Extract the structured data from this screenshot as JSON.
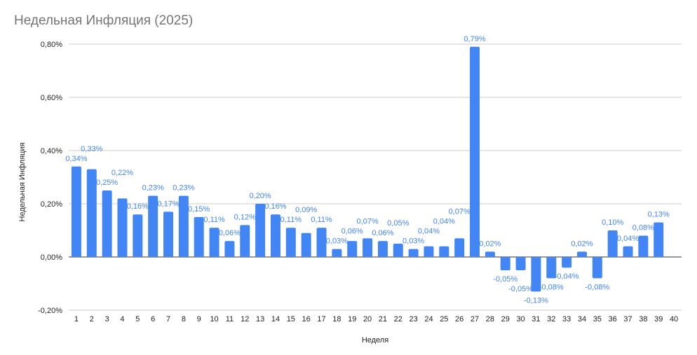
{
  "chart_data": {
    "type": "bar",
    "title": "Недельная Инфляция (2025)",
    "xlabel": "Неделя",
    "ylabel": "Недельная Инфляция",
    "ylim": [
      -0.2,
      0.8
    ],
    "yticks": [
      -0.2,
      0,
      0.2,
      0.4,
      0.6,
      0.8
    ],
    "ytick_labels": [
      "-0,20%",
      "0,00%",
      "0,20%",
      "0,40%",
      "0,60%",
      "0,80%"
    ],
    "grid": true,
    "legend": "none",
    "bar_color": "#4285f4",
    "categories": [
      "1",
      "2",
      "3",
      "4",
      "5",
      "6",
      "7",
      "8",
      "9",
      "10",
      "11",
      "12",
      "13",
      "14",
      "15",
      "16",
      "17",
      "18",
      "19",
      "20",
      "21",
      "22",
      "23",
      "24",
      "25",
      "26",
      "27",
      "28",
      "29",
      "30",
      "31",
      "32",
      "33",
      "34",
      "35",
      "36",
      "37",
      "38",
      "39",
      "40"
    ],
    "values": [
      0.34,
      0.33,
      0.25,
      0.22,
      0.16,
      0.23,
      0.17,
      0.23,
      0.15,
      0.11,
      0.06,
      0.12,
      0.2,
      0.16,
      0.11,
      0.09,
      0.11,
      0.03,
      0.06,
      0.07,
      0.06,
      0.05,
      0.03,
      0.04,
      0.04,
      0.07,
      0.79,
      0.02,
      -0.05,
      -0.05,
      -0.13,
      -0.08,
      -0.04,
      0.02,
      -0.08,
      0.1,
      0.04,
      0.08,
      0.13,
      null
    ],
    "data_labels": [
      "0,34%",
      "0,33%",
      "0,25%",
      "0,22%",
      "0,16%",
      "0,23%",
      "0,17%",
      "0,23%",
      "0,15%",
      "0,11%",
      "0,06%",
      "0,12%",
      "0,20%",
      "0,16%",
      "0,11%",
      "0,09%",
      "0,11%",
      "0,03%",
      "0,06%",
      "0,07%",
      "0,06%",
      "0,05%",
      "0,03%",
      "0,04%",
      "0,04%",
      "0,07%",
      "0,79%",
      "0,02%",
      "-0,05%",
      "-0,05%",
      "-0,13%",
      "-0,08%",
      "-0,04%",
      "0,02%",
      "-0,08%",
      "0,10%",
      "0,04%",
      "0,08%",
      "0,13%",
      null
    ]
  }
}
